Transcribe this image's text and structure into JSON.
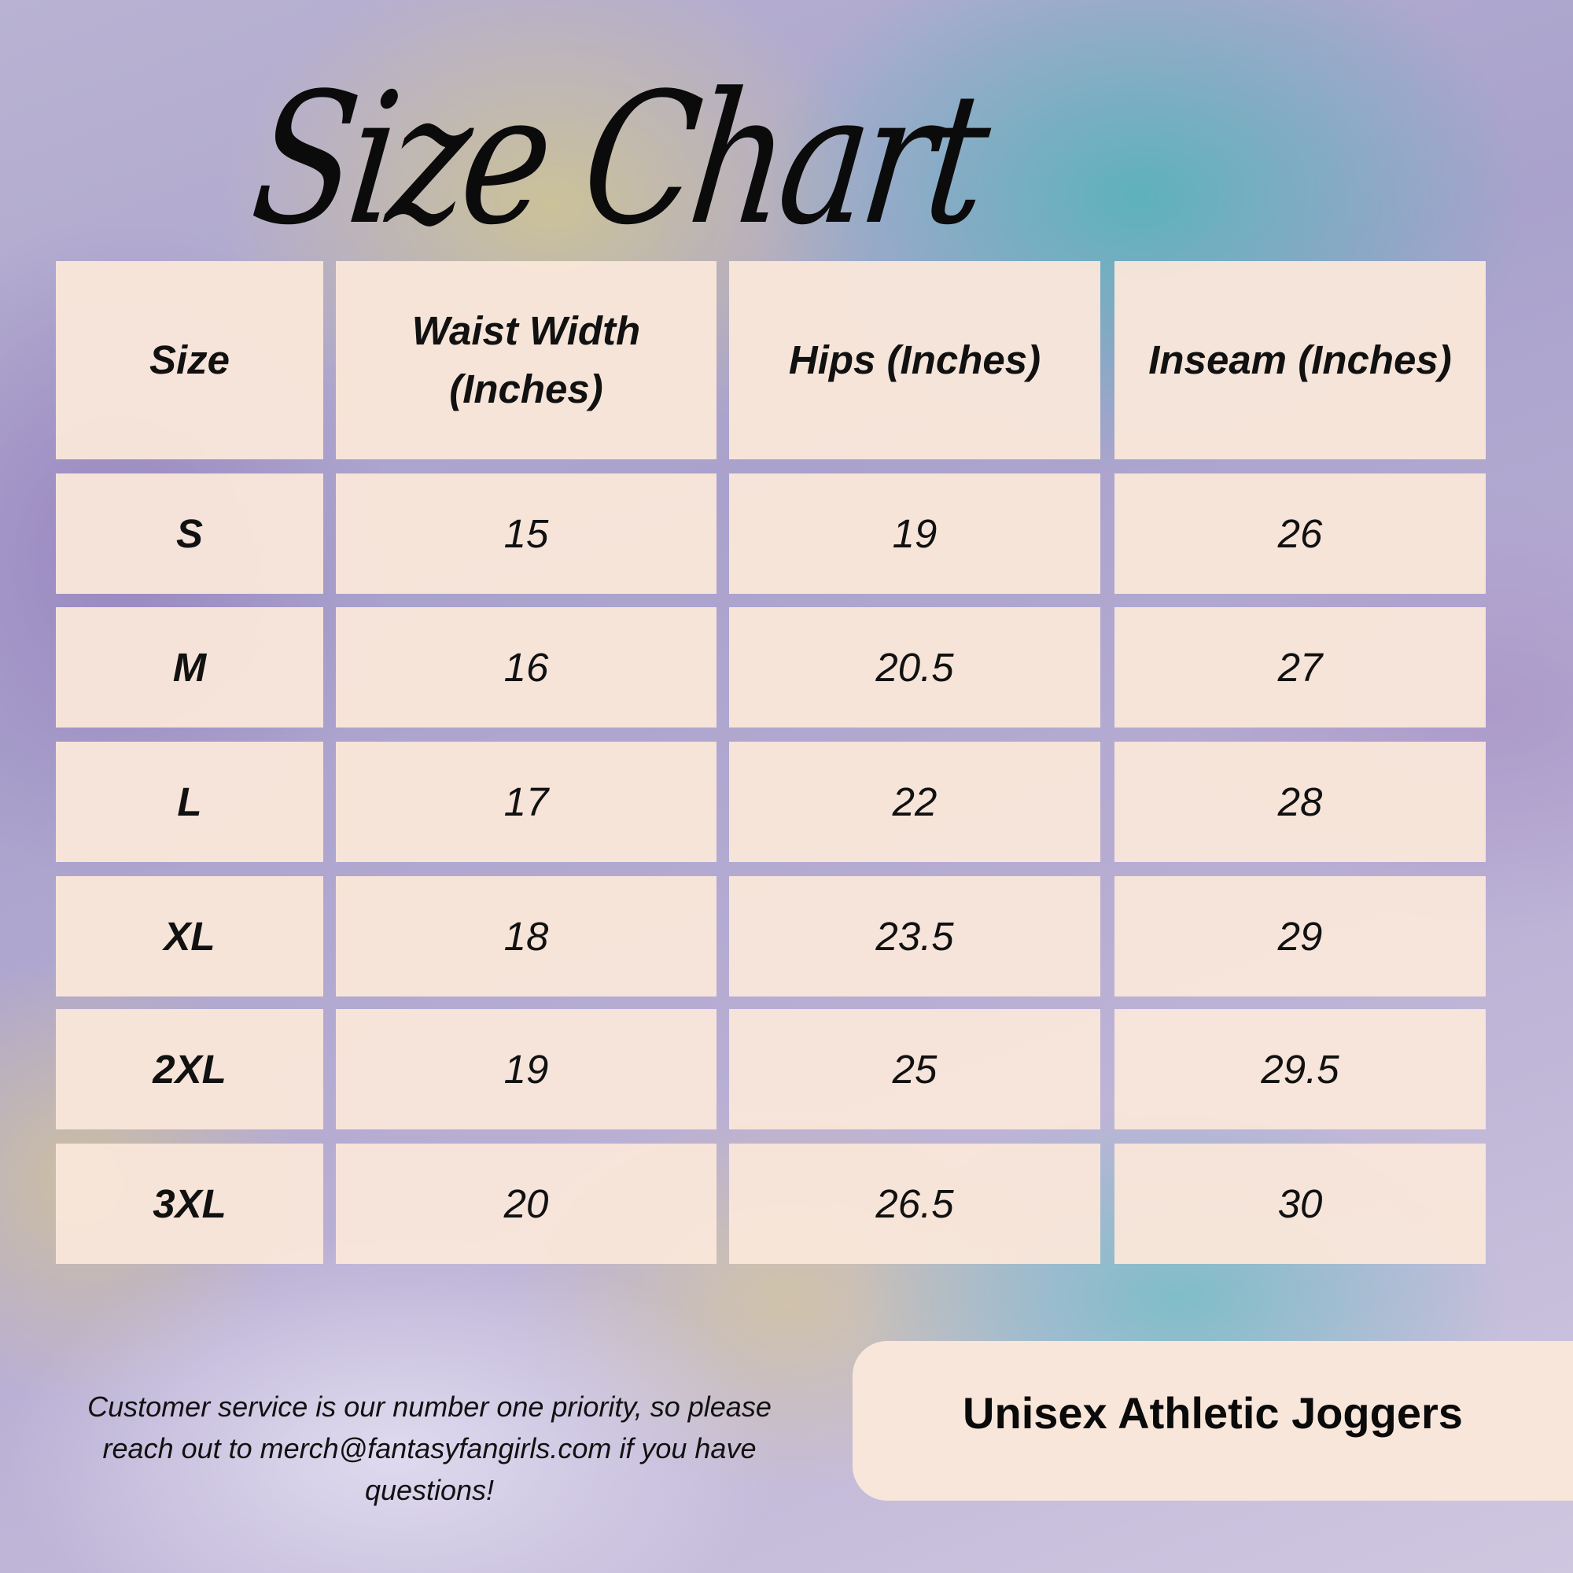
{
  "title": "Size Chart",
  "table": {
    "headers": [
      "Size",
      "Waist Width (Inches)",
      "Hips (Inches)",
      "Inseam (Inches)"
    ],
    "rows": [
      [
        "S",
        "15",
        "19",
        "26"
      ],
      [
        "M",
        "16",
        "20.5",
        "27"
      ],
      [
        "L",
        "17",
        "22",
        "28"
      ],
      [
        "XL",
        "18",
        "23.5",
        "29"
      ],
      [
        "2XL",
        "19",
        "25",
        "29.5"
      ],
      [
        "3XL",
        "20",
        "26.5",
        "30"
      ]
    ]
  },
  "footer": {
    "text": "Customer service is our number one priority, so please reach out to merch@fantasyfangirls.com if you have questions!"
  },
  "product_label": "Unisex Athletic Joggers",
  "colors": {
    "cell_background": "#f9e6da",
    "text": "#111111"
  }
}
